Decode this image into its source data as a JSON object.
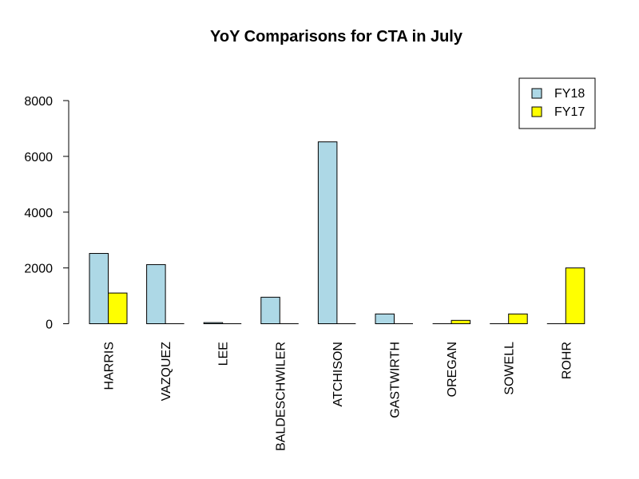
{
  "chart_data": {
    "type": "bar",
    "title": "YoY Comparisons for CTA in July",
    "xlabel": "",
    "ylabel": "",
    "categories": [
      "HARRIS",
      "VAZQUEZ",
      "LEE",
      "BALDESCHWILER",
      "ATCHISON",
      "GASTWIRTH",
      "OREGAN",
      "SOWELL",
      "ROHR"
    ],
    "series": [
      {
        "name": "FY18",
        "color": "#add8e6",
        "values": [
          2520,
          2120,
          40,
          950,
          6520,
          350,
          0,
          0,
          0
        ]
      },
      {
        "name": "FY17",
        "color": "#ffff00",
        "values": [
          1100,
          0,
          0,
          0,
          0,
          0,
          120,
          350,
          2000
        ]
      }
    ],
    "ylim": [
      0,
      8000
    ],
    "yticks": [
      0,
      2000,
      4000,
      6000,
      8000
    ],
    "grid": false,
    "legend_position": "top-right"
  }
}
